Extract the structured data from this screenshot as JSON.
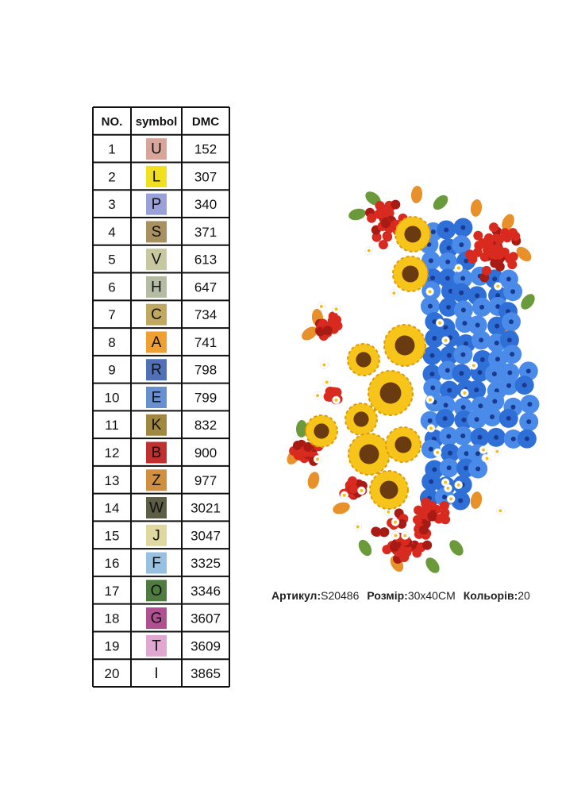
{
  "table": {
    "headers": [
      "NO.",
      "symbol",
      "DMC"
    ],
    "rows": [
      [
        "1",
        "U",
        "152"
      ],
      [
        "2",
        "L",
        "307"
      ],
      [
        "3",
        "P",
        "340"
      ],
      [
        "4",
        "S",
        "371"
      ],
      [
        "5",
        "V",
        "613"
      ],
      [
        "6",
        "H",
        "647"
      ],
      [
        "7",
        "C",
        "734"
      ],
      [
        "8",
        "A",
        "741"
      ],
      [
        "9",
        "R",
        "798"
      ],
      [
        "10",
        "E",
        "799"
      ],
      [
        "11",
        "K",
        "832"
      ],
      [
        "12",
        "B",
        "900"
      ],
      [
        "13",
        "Z",
        "977"
      ],
      [
        "14",
        "W",
        "3021"
      ],
      [
        "15",
        "J",
        "3047"
      ],
      [
        "16",
        "F",
        "3325"
      ],
      [
        "17",
        "O",
        "3346"
      ],
      [
        "18",
        "G",
        "3607"
      ],
      [
        "19",
        "T",
        "3609"
      ],
      [
        "20",
        "I",
        "3865"
      ]
    ],
    "symbol_colors": [
      "#d9a59a",
      "#f0e020",
      "#9aa0d8",
      "#a89060",
      "#c8c8a0",
      "#b4bca4",
      "#c0a860",
      "#f0a030",
      "#5070b8",
      "#6890d0",
      "#a08840",
      "#c03030",
      "#d09040",
      "#5e5e46",
      "#e0d8a0",
      "#98c0e0",
      "#4f7a40",
      "#b05090",
      "#e0a8d0",
      "#ffffff"
    ]
  },
  "caption": [
    {
      "label": "Артикул:",
      "value": "S20486"
    },
    {
      "label": "Розмір:",
      "value": "30x40CM"
    },
    {
      "label": "Кольорів:",
      "value": "20"
    }
  ]
}
